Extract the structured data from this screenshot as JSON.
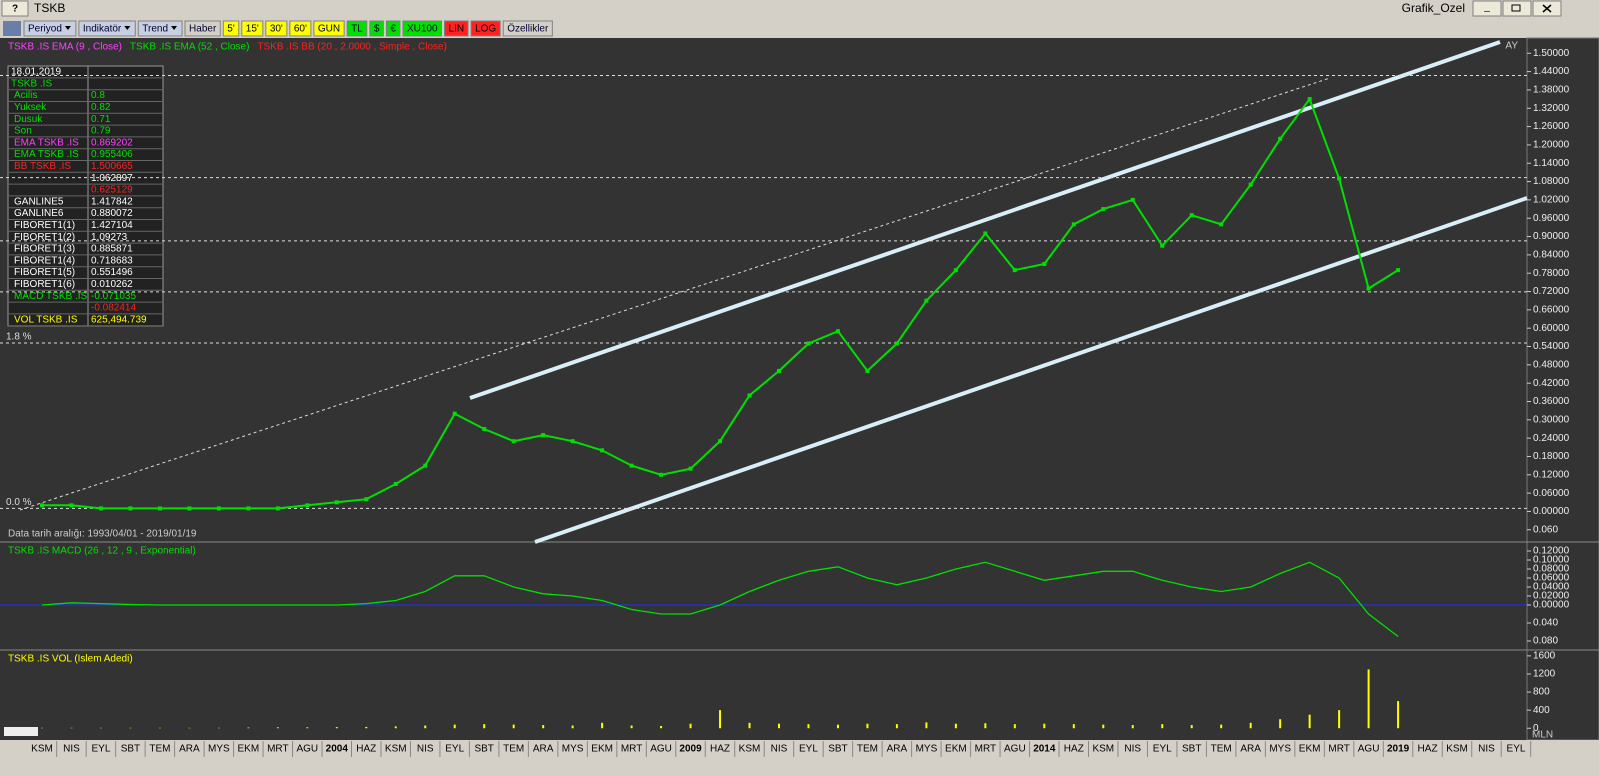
{
  "window": {
    "help": "?",
    "title": "TSKB",
    "app": "Grafik_Ozel"
  },
  "toolbar": [
    {
      "label": "Periyod",
      "color": "#c8cfe0"
    },
    {
      "label": "Indikatör",
      "color": "#c8cfe0"
    },
    {
      "label": "Trend",
      "color": "#c8cfe0"
    },
    {
      "label": "Haber",
      "color": "#d4d0c8"
    },
    {
      "label": "5'",
      "color": "#ffff00"
    },
    {
      "label": "15'",
      "color": "#ffff00"
    },
    {
      "label": "30'",
      "color": "#ffff00"
    },
    {
      "label": "60'",
      "color": "#ffff00"
    },
    {
      "label": "GUN",
      "color": "#ffff00"
    },
    {
      "label": "TL",
      "color": "#00e000"
    },
    {
      "label": "$",
      "color": "#00e000"
    },
    {
      "label": "€",
      "color": "#00e000"
    },
    {
      "label": "XU100",
      "color": "#00e000"
    },
    {
      "label": "LIN",
      "color": "#ff2020"
    },
    {
      "label": "LOG",
      "color": "#ff2020"
    },
    {
      "label": "Özellikler",
      "color": "#d4d0c8"
    }
  ],
  "price_legend": [
    {
      "name": "TSKB .IS EMA (9 , Close)",
      "color": "#ff40ff"
    },
    {
      "name": "TSKB .IS EMA (52 , Close)",
      "color": "#00e000"
    },
    {
      "name": "TSKB .IS BB (20 , 2.0000 , Simple , Close)",
      "color": "#ff2020"
    }
  ],
  "period": "AY",
  "date_range": "Data tarih aralığı: 1993/04/01 - 2019/01/19",
  "fib_labels": [
    {
      "label": "1.8 %",
      "level": 4
    },
    {
      "label": "0.0 %",
      "level": 5
    }
  ],
  "info_panel": [
    {
      "label": "18.01.2019",
      "color": "#ffffff"
    },
    {
      "label": "TSKB .IS",
      "color": "#00e000"
    },
    {
      "label": "Acilis",
      "value": "0.8",
      "color": "#00e000"
    },
    {
      "label": "Yuksek",
      "value": "0.82",
      "color": "#00e000"
    },
    {
      "label": "Dusuk",
      "value": "0.71",
      "color": "#00e000"
    },
    {
      "label": "Son",
      "value": "0.79",
      "color": "#00e000"
    },
    {
      "label": "EMA TSKB .IS",
      "value": "0.869202",
      "color": "#ff40ff"
    },
    {
      "label": "EMA TSKB .IS",
      "value": "0.955406",
      "color": "#00e000"
    },
    {
      "label": "BB TSKB .IS",
      "value": "1.500665",
      "color": "#ff2020"
    },
    {
      "value": "1.062897",
      "color": "#ffffff"
    },
    {
      "value": "0.625129",
      "color": "#ff2020"
    },
    {
      "label": "GANLINE5",
      "value": "1.417842",
      "color": "#ffffff"
    },
    {
      "label": "GANLINE6",
      "value": "0.880072",
      "color": "#ffffff"
    },
    {
      "label": "FIBORET1(1)",
      "value": "1.427104",
      "color": "#ffffff"
    },
    {
      "label": "FIBORET1(2)",
      "value": "1.09273",
      "color": "#ffffff"
    },
    {
      "label": "FIBORET1(3)",
      "value": "0.885871",
      "color": "#ffffff"
    },
    {
      "label": "FIBORET1(4)",
      "value": "0.718683",
      "color": "#ffffff"
    },
    {
      "label": "FIBORET1(5)",
      "value": "0.551496",
      "color": "#ffffff"
    },
    {
      "label": "FIBORET1(6)",
      "value": "0.010262",
      "color": "#ffffff"
    },
    {
      "label": "MACD TSKB .IS",
      "value": "-0.071035",
      "color": "#00e000"
    },
    {
      "value": "-0.082414",
      "color": "#ff2020"
    },
    {
      "label": "VOL TSKB .IS",
      "value": "625,494.739",
      "color": "#ffff00"
    }
  ],
  "volume_unit": "MLN",
  "chart_data": [
    {
      "type": "line",
      "name": "TSKB",
      "color": "#00e000",
      "categories": [
        "KSM",
        "NIS",
        "EYL",
        "SBT",
        "TEM",
        "ARA",
        "MYS",
        "EKM",
        "MRT",
        "AGU",
        "2004",
        "HAZ",
        "KSM",
        "NIS",
        "EYL",
        "SBT",
        "TEM",
        "ARA",
        "MYS",
        "EKM",
        "MRT",
        "AGU",
        "2009",
        "HAZ",
        "KSM",
        "NIS",
        "EYL",
        "SBT",
        "TEM",
        "ARA",
        "MYS",
        "EKM",
        "MRT",
        "AGU",
        "2014",
        "HAZ",
        "KSM",
        "NIS",
        "EYL",
        "SBT",
        "TEM",
        "ARA",
        "MYS",
        "EKM",
        "MRT",
        "AGU",
        "2019",
        "HAZ",
        "KSM",
        "NIS",
        "EYL"
      ],
      "values": [
        0.02,
        0.02,
        0.01,
        0.01,
        0.01,
        0.01,
        0.01,
        0.01,
        0.01,
        0.02,
        0.03,
        0.04,
        0.09,
        0.15,
        0.32,
        0.27,
        0.23,
        0.25,
        0.23,
        0.2,
        0.15,
        0.12,
        0.14,
        0.23,
        0.38,
        0.46,
        0.55,
        0.59,
        0.46,
        0.55,
        0.69,
        0.79,
        0.91,
        0.79,
        0.81,
        0.94,
        0.99,
        1.02,
        0.87,
        0.97,
        0.94,
        1.07,
        1.22,
        1.35,
        1.09,
        0.73,
        0.79,
        null,
        null,
        null,
        null
      ],
      "ylim": [
        -0.1,
        1.55
      ],
      "yticks": [
        {
          "value": 1.5,
          "label": "1.50000"
        },
        {
          "value": 1.44,
          "label": "1.44000"
        },
        {
          "value": 1.38,
          "label": "1.38000"
        },
        {
          "value": 1.32,
          "label": "1.32000"
        },
        {
          "value": 1.26,
          "label": "1.26000"
        },
        {
          "value": 1.2,
          "label": "1.20000"
        },
        {
          "value": 1.14,
          "label": "1.14000"
        },
        {
          "value": 1.08,
          "label": "1.08000"
        },
        {
          "value": 1.02,
          "label": "1.02000"
        },
        {
          "value": 0.96,
          "label": "0.96000"
        },
        {
          "value": 0.9,
          "label": "0.90000"
        },
        {
          "value": 0.84,
          "label": "0.84000"
        },
        {
          "value": 0.78,
          "label": "0.78000"
        },
        {
          "value": 0.72,
          "label": "0.72000"
        },
        {
          "value": 0.66,
          "label": "0.66000"
        },
        {
          "value": 0.6,
          "label": "0.60000"
        },
        {
          "value": 0.54,
          "label": "0.54000"
        },
        {
          "value": 0.48,
          "label": "0.48000"
        },
        {
          "value": 0.42,
          "label": "0.42000"
        },
        {
          "value": 0.36,
          "label": "0.36000"
        },
        {
          "value": 0.3,
          "label": "0.30000"
        },
        {
          "value": 0.24,
          "label": "0.24000"
        },
        {
          "value": 0.18,
          "label": "0.18000"
        },
        {
          "value": 0.12,
          "label": "0.12000"
        },
        {
          "value": 0.06,
          "label": "0.06000"
        },
        {
          "value": 0,
          "label": "0.00000"
        },
        {
          "value": -0.06,
          "label": "0.060"
        }
      ]
    },
    {
      "type": "line",
      "title": "TSKB .IS MACD (26 , 12 , 9 , Exponential)",
      "color": "#00e000",
      "values": [
        0,
        0.005,
        0.003,
        0.001,
        0,
        0,
        0,
        0,
        0,
        0,
        0,
        0.003,
        0.01,
        0.03,
        0.065,
        0.065,
        0.04,
        0.025,
        0.02,
        0.01,
        -0.01,
        -0.02,
        -0.02,
        0,
        0.03,
        0.055,
        0.075,
        0.085,
        0.06,
        0.045,
        0.06,
        0.08,
        0.095,
        0.075,
        0.055,
        0.065,
        0.075,
        0.075,
        0.055,
        0.04,
        0.03,
        0.04,
        0.07,
        0.095,
        0.06,
        -0.02,
        -0.07,
        null,
        null,
        null,
        null
      ],
      "ylim": [
        -0.1,
        0.14
      ],
      "yticks": [
        {
          "value": 0.12,
          "label": "0.12000"
        },
        {
          "value": 0.1,
          "label": "0.10000"
        },
        {
          "value": 0.08,
          "label": "0.08000"
        },
        {
          "value": 0.06,
          "label": "0.06000"
        },
        {
          "value": 0.04,
          "label": "0.04000"
        },
        {
          "value": 0.02,
          "label": "0.02000"
        },
        {
          "value": 0,
          "label": "0.00000"
        },
        {
          "value": -0.04,
          "label": "0.040"
        },
        {
          "value": -0.08,
          "label": "0.080"
        }
      ]
    },
    {
      "type": "bar",
      "title": "TSKB .IS VOL (Islem Adedi)",
      "color": "#ffff00",
      "values": [
        10,
        10,
        10,
        10,
        10,
        10,
        10,
        15,
        20,
        20,
        25,
        30,
        40,
        60,
        80,
        90,
        80,
        70,
        60,
        120,
        60,
        50,
        100,
        400,
        120,
        100,
        90,
        80,
        100,
        90,
        130,
        100,
        110,
        90,
        100,
        90,
        80,
        70,
        90,
        70,
        80,
        120,
        200,
        300,
        400,
        1300,
        600,
        null,
        null,
        null,
        null
      ],
      "ylim": [
        -260,
        1730
      ],
      "yticks": [
        1600,
        1200,
        800,
        400,
        0
      ]
    }
  ]
}
